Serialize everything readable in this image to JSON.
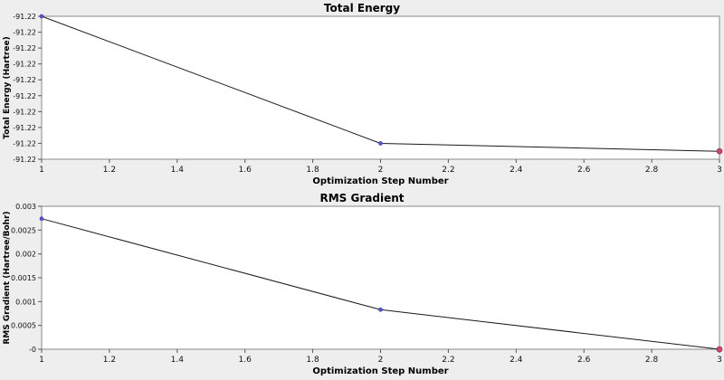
{
  "chart_data": [
    {
      "type": "line",
      "title": "Total Energy",
      "xlabel": "Optimization Step Number",
      "ylabel": "Total Energy (Hartree)",
      "x": [
        1,
        2,
        3
      ],
      "series": [
        {
          "values": [
            -91.2195,
            -91.2211,
            -91.2212
          ]
        }
      ],
      "xlim": [
        1,
        3
      ],
      "ylim": [
        -91.2213,
        -91.2195
      ],
      "xticks": [
        "1",
        "1.2",
        "1.4",
        "1.6",
        "1.8",
        "2",
        "2.2",
        "2.4",
        "2.6",
        "2.8",
        "3"
      ],
      "yticks": [
        "-91.22",
        "-91.22",
        "-91.22",
        "-91.22",
        "-91.22",
        "-91.22",
        "-91.22",
        "-91.22",
        "-91.22",
        "-91.22"
      ],
      "grid": false,
      "colors": {
        "line": "#1a1a1a",
        "point": "#5b5bd6",
        "last_point": "#d04a6a",
        "plot_bg": "#ffffff",
        "frame": "#8a8a8a"
      }
    },
    {
      "type": "line",
      "title": "RMS Gradient",
      "xlabel": "Optimization Step Number",
      "ylabel": "RMS Gradient (Hartree/Bohr)",
      "x": [
        1,
        2,
        3
      ],
      "series": [
        {
          "values": [
            0.00274,
            0.00083,
            0.0
          ]
        }
      ],
      "xlim": [
        1,
        3
      ],
      "ylim": [
        0,
        0.003
      ],
      "xticks": [
        "1",
        "1.2",
        "1.4",
        "1.6",
        "1.8",
        "2",
        "2.2",
        "2.4",
        "2.6",
        "2.8",
        "3"
      ],
      "yticks": [
        "-0",
        "0.0005",
        "0.001",
        "0.0015",
        "0.002",
        "0.0025",
        "0.003"
      ],
      "grid": false,
      "colors": {
        "line": "#1a1a1a",
        "point": "#5b5bd6",
        "last_point": "#d04a6a",
        "plot_bg": "#ffffff",
        "frame": "#8a8a8a"
      }
    }
  ]
}
